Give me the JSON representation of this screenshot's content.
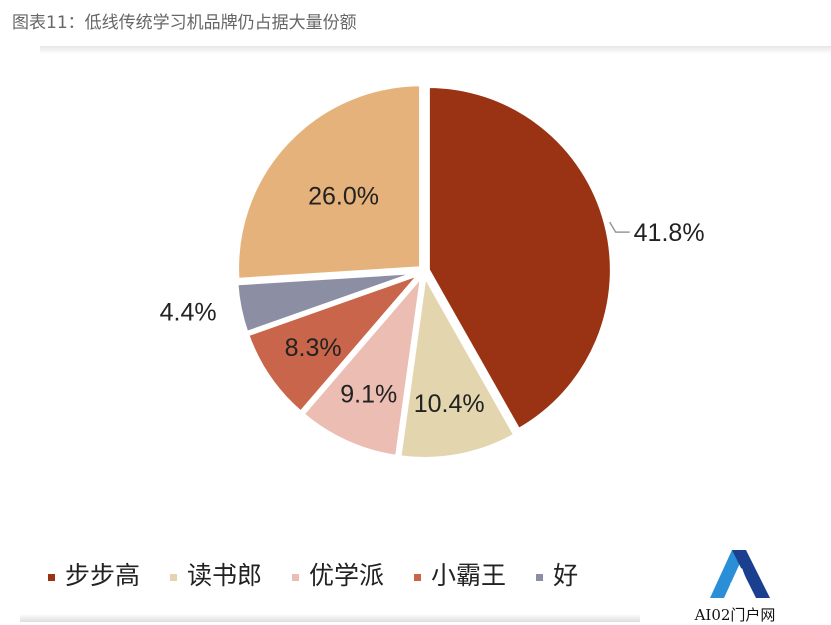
{
  "title": "图表11：低线传统学习机品牌仍占据大量份额",
  "chart_data": {
    "type": "pie",
    "title": "",
    "start": "top, clockwise",
    "slices": [
      {
        "name": "步步高",
        "value": 41.8,
        "label": "41.8%",
        "color": "#9A3214"
      },
      {
        "name": "读书郎",
        "value": 10.4,
        "label": "10.4%",
        "color": "#E3D5AD"
      },
      {
        "name": "优学派",
        "value": 9.1,
        "label": "9.1%",
        "color": "#EBBDB3"
      },
      {
        "name": "小霸王",
        "value": 8.3,
        "label": "8.3%",
        "color": "#C8654A"
      },
      {
        "name": "好",
        "value": 4.4,
        "label": "4.4%",
        "color": "#8C8EA3"
      },
      {
        "name": "",
        "value": 26.0,
        "label": "26.0%",
        "color": "#E6B27C"
      }
    ],
    "legend_placement": "bottom"
  },
  "watermark": {
    "text": "AI02门户网"
  }
}
